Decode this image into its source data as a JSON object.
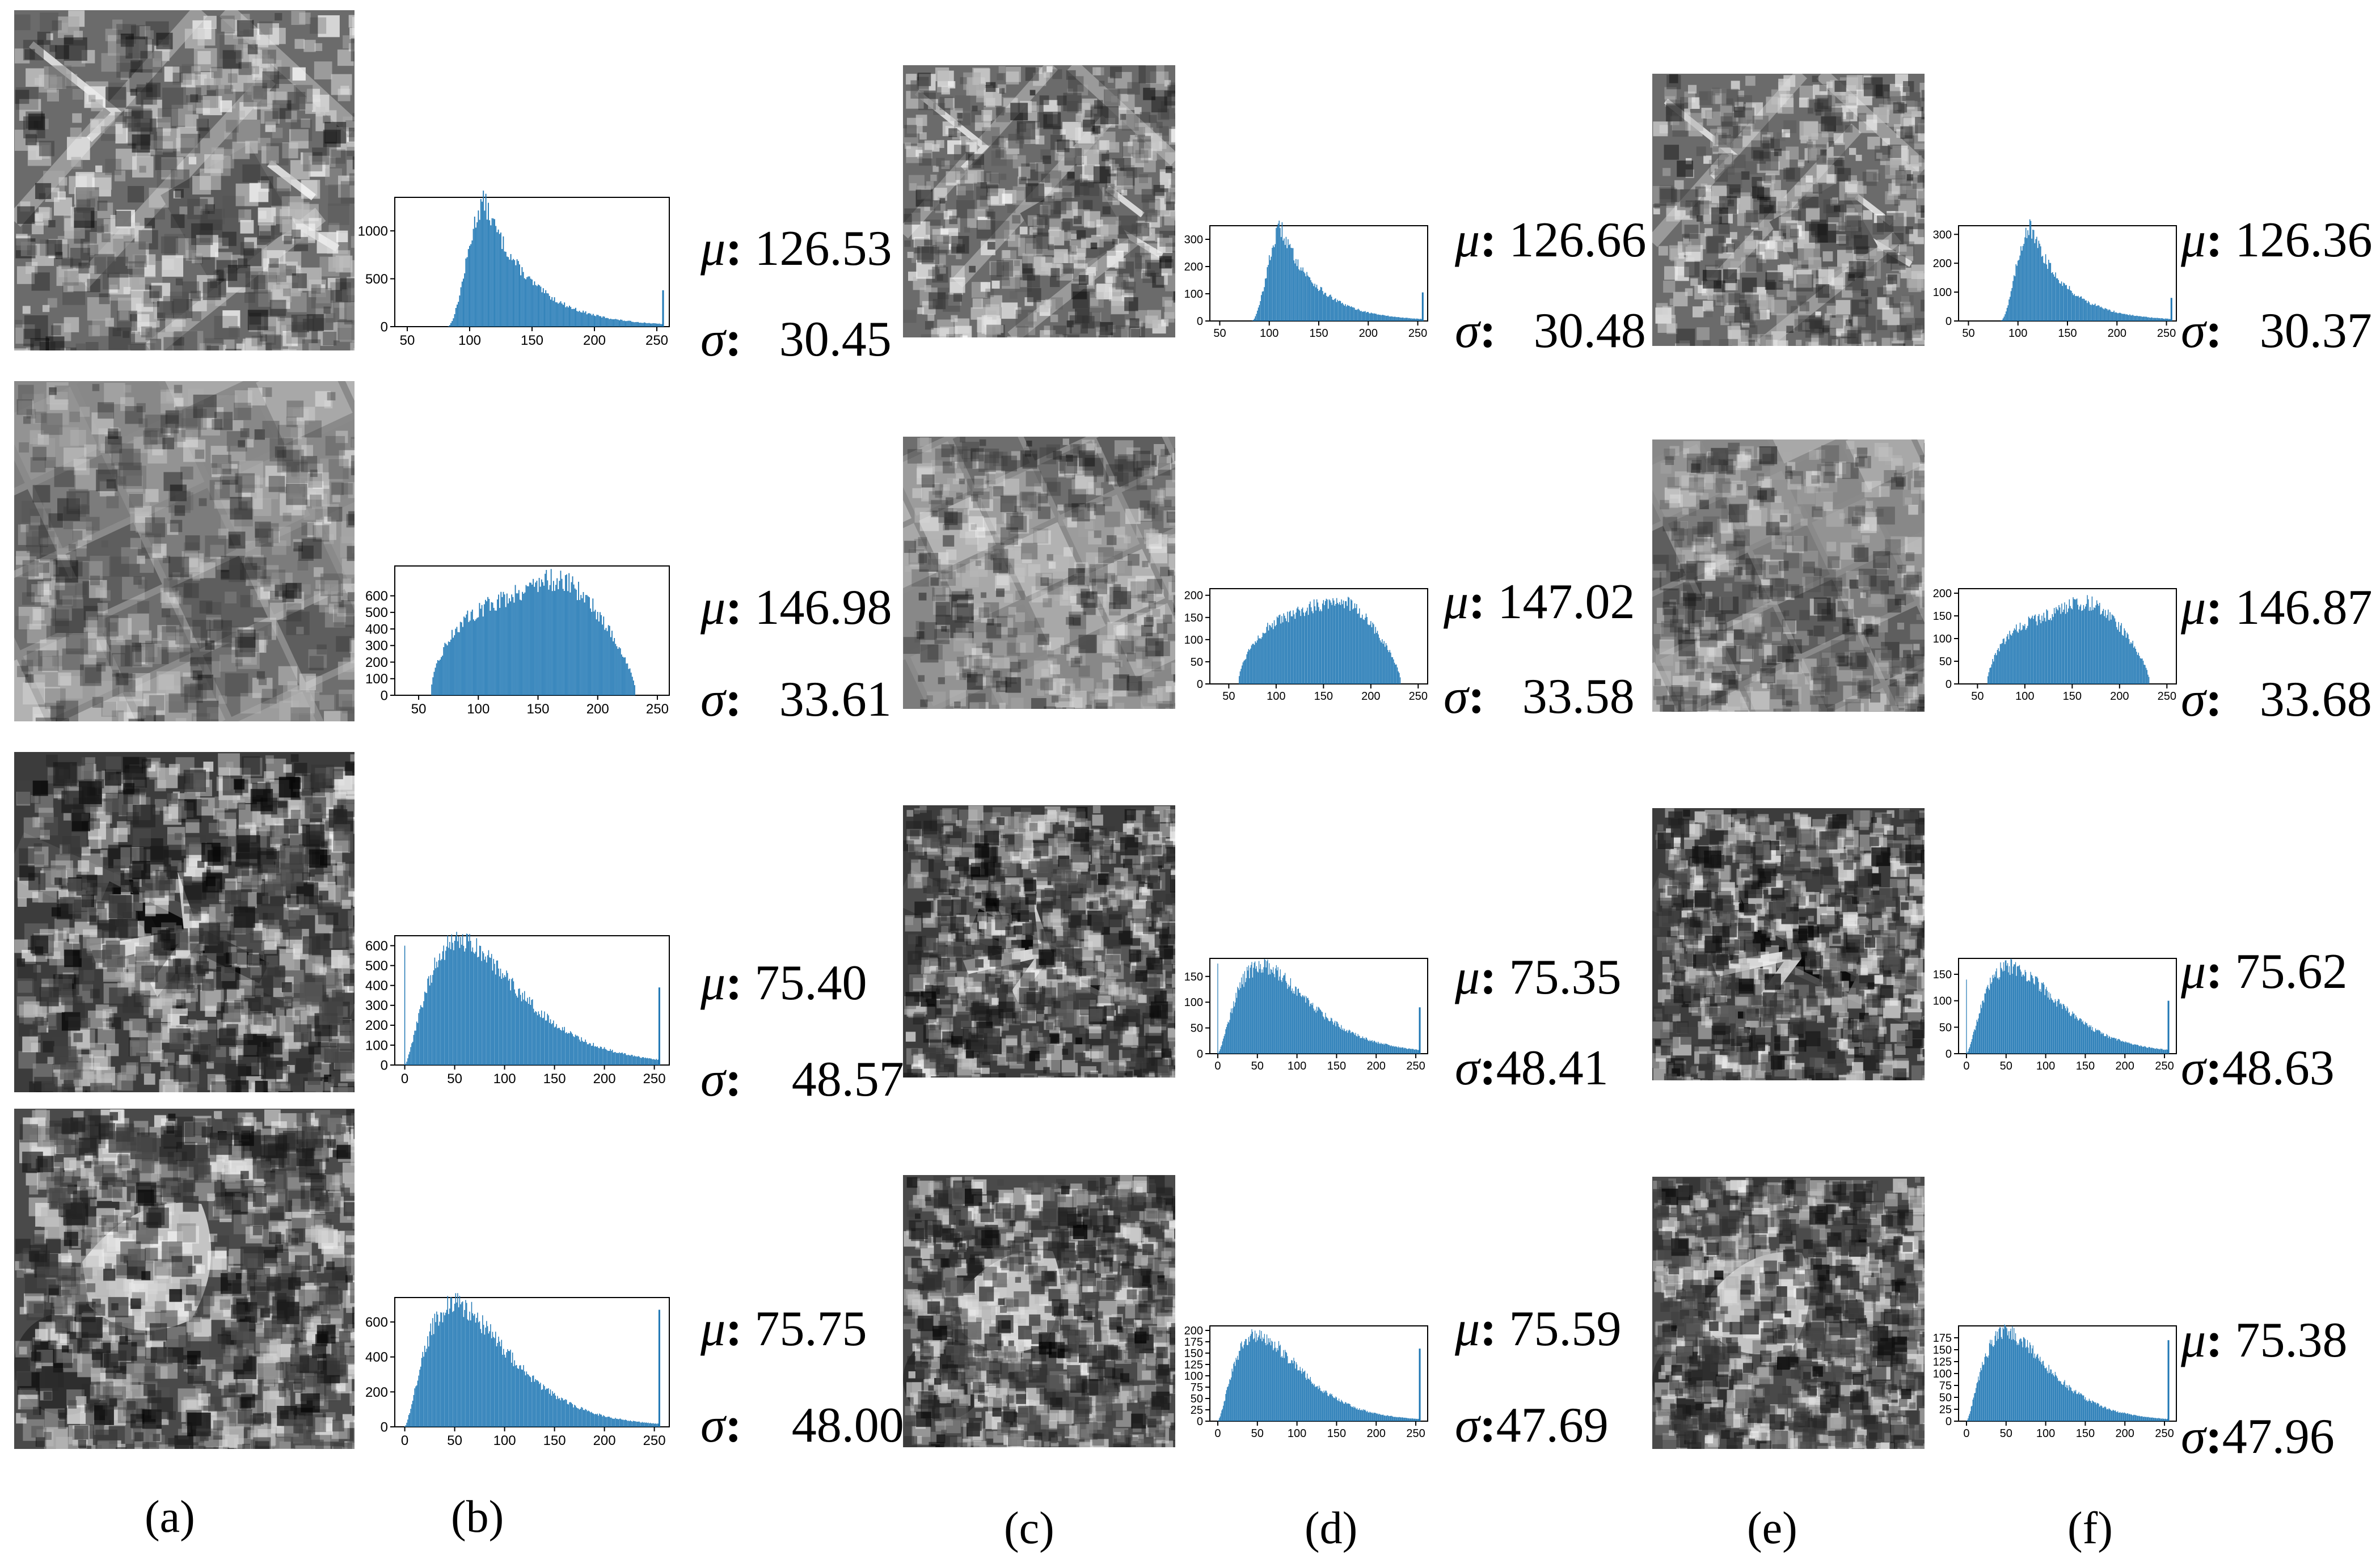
{
  "panel_labels": [
    "(a)",
    "(b)",
    "(c)",
    "(d)",
    "(e)",
    "(f)"
  ],
  "stat_symbols": {
    "mean": "μ",
    "std": "σ",
    "separator": ":"
  },
  "chart_data": [
    {
      "type": "bar",
      "row": 1,
      "group": "b",
      "xlim": [
        40,
        260
      ],
      "ylim": [
        0,
        1350
      ],
      "xticks": [
        "50",
        "100",
        "150",
        "200",
        "250"
      ],
      "yticks": [
        "0",
        "500",
        "1000"
      ],
      "shape": {
        "kind": "skew",
        "start": 82,
        "peak": 112,
        "peak_value": 1300,
        "tail": 0.027,
        "spike_x": 255,
        "spike_value": 380
      },
      "mean": "126.53",
      "std": "30.45",
      "color": "#1f77b4"
    },
    {
      "type": "bar",
      "row": 1,
      "group": "d",
      "xlim": [
        40,
        260
      ],
      "ylim": [
        0,
        350
      ],
      "xticks": [
        "50",
        "100",
        "150",
        "200",
        "250"
      ],
      "yticks": [
        "0",
        "100",
        "200",
        "300"
      ],
      "shape": {
        "kind": "skew",
        "start": 82,
        "peak": 112,
        "peak_value": 340,
        "tail": 0.027,
        "spike_x": 255,
        "spike_value": 105
      },
      "mean": "126.66",
      "std": "30.48",
      "color": "#1f77b4"
    },
    {
      "type": "bar",
      "row": 1,
      "group": "f",
      "xlim": [
        40,
        260
      ],
      "ylim": [
        0,
        330
      ],
      "xticks": [
        "50",
        "100",
        "150",
        "200",
        "250"
      ],
      "yticks": [
        "0",
        "100",
        "200",
        "300"
      ],
      "shape": {
        "kind": "skew",
        "start": 82,
        "peak": 112,
        "peak_value": 325,
        "tail": 0.027,
        "spike_x": 255,
        "spike_value": 80
      },
      "mean": "126.36",
      "std": "30.37",
      "color": "#1f77b4"
    },
    {
      "type": "bar",
      "row": 2,
      "group": "b",
      "xlim": [
        30,
        260
      ],
      "ylim": [
        0,
        780
      ],
      "xticks": [
        "50",
        "100",
        "150",
        "200",
        "250"
      ],
      "yticks": [
        "0",
        "100",
        "200",
        "300",
        "400",
        "500",
        "600"
      ],
      "shape": {
        "kind": "plateau",
        "start": 60,
        "end": 232,
        "peak_value": 740
      },
      "mean": "146.98",
      "std": "33.61",
      "color": "#1f77b4"
    },
    {
      "type": "bar",
      "row": 2,
      "group": "d",
      "xlim": [
        30,
        260
      ],
      "ylim": [
        0,
        215
      ],
      "xticks": [
        "50",
        "100",
        "150",
        "200",
        "250"
      ],
      "yticks": [
        "0",
        "50",
        "100",
        "150",
        "200"
      ],
      "shape": {
        "kind": "plateau",
        "start": 60,
        "end": 232,
        "peak_value": 200
      },
      "mean": "147.02",
      "std": "33.58",
      "color": "#1f77b4"
    },
    {
      "type": "bar",
      "row": 2,
      "group": "f",
      "xlim": [
        30,
        260
      ],
      "ylim": [
        0,
        210
      ],
      "xticks": [
        "50",
        "100",
        "150",
        "200",
        "250"
      ],
      "yticks": [
        "0",
        "50",
        "100",
        "150",
        "200"
      ],
      "shape": {
        "kind": "plateau",
        "start": 60,
        "end": 232,
        "peak_value": 190
      },
      "mean": "146.87",
      "std": "33.68",
      "color": "#1f77b4"
    },
    {
      "type": "bar",
      "row": 3,
      "group": "b",
      "xlim": [
        -10,
        265
      ],
      "ylim": [
        0,
        650
      ],
      "xticks": [
        "0",
        "50",
        "100",
        "150",
        "200",
        "250"
      ],
      "yticks": [
        "0",
        "100",
        "200",
        "300",
        "400",
        "500",
        "600"
      ],
      "shape": {
        "kind": "gamma",
        "peak": 55,
        "peak_value": 620,
        "k": 2.5,
        "start_spike": 600,
        "spike_x": 255,
        "spike_value": 390
      },
      "mean": "75.40",
      "std": "48.57",
      "color": "#1f77b4"
    },
    {
      "type": "bar",
      "row": 3,
      "group": "d",
      "xlim": [
        -10,
        265
      ],
      "ylim": [
        0,
        185
      ],
      "xticks": [
        "0",
        "50",
        "100",
        "150",
        "200",
        "250"
      ],
      "yticks": [
        "0",
        "50",
        "100",
        "150"
      ],
      "shape": {
        "kind": "gamma",
        "peak": 55,
        "peak_value": 170,
        "k": 2.5,
        "start_spike": 175,
        "spike_x": 255,
        "spike_value": 90
      },
      "mean": "75.35",
      "std": "48.41",
      "color": "#1f77b4"
    },
    {
      "type": "bar",
      "row": 3,
      "group": "f",
      "xlim": [
        -10,
        265
      ],
      "ylim": [
        0,
        180
      ],
      "xticks": [
        "0",
        "50",
        "100",
        "150",
        "200",
        "250"
      ],
      "yticks": [
        "0",
        "50",
        "100",
        "150"
      ],
      "shape": {
        "kind": "gamma",
        "peak": 55,
        "peak_value": 165,
        "k": 2.5,
        "start_spike": 140,
        "spike_x": 255,
        "spike_value": 100
      },
      "mean": "75.62",
      "std": "48.63",
      "color": "#1f77b4"
    },
    {
      "type": "bar",
      "row": 4,
      "group": "b",
      "xlim": [
        -10,
        265
      ],
      "ylim": [
        0,
        740
      ],
      "xticks": [
        "0",
        "50",
        "100",
        "150",
        "200",
        "250"
      ],
      "yticks": [
        "0",
        "200",
        "400",
        "600"
      ],
      "shape": {
        "kind": "gamma",
        "peak": 50,
        "peak_value": 700,
        "k": 2.5,
        "start_spike": 0,
        "spike_x": 255,
        "spike_value": 670
      },
      "mean": "75.75",
      "std": "48.00",
      "color": "#1f77b4"
    },
    {
      "type": "bar",
      "row": 4,
      "group": "d",
      "xlim": [
        -10,
        265
      ],
      "ylim": [
        0,
        210
      ],
      "xticks": [
        "0",
        "50",
        "100",
        "150",
        "200",
        "250"
      ],
      "yticks": [
        "0",
        "25",
        "50",
        "75",
        "100",
        "125",
        "150",
        "175",
        "200"
      ],
      "shape": {
        "kind": "gamma",
        "peak": 50,
        "peak_value": 190,
        "k": 2.5,
        "start_spike": 0,
        "spike_x": 255,
        "spike_value": 160
      },
      "mean": "75.59",
      "std": "47.69",
      "color": "#1f77b4"
    },
    {
      "type": "bar",
      "row": 4,
      "group": "f",
      "xlim": [
        -10,
        265
      ],
      "ylim": [
        0,
        200
      ],
      "xticks": [
        "0",
        "50",
        "100",
        "150",
        "200",
        "250"
      ],
      "yticks": [
        "0",
        "25",
        "50",
        "75",
        "100",
        "125",
        "150",
        "175"
      ],
      "shape": {
        "kind": "gamma",
        "peak": 50,
        "peak_value": 185,
        "k": 2.5,
        "start_spike": 0,
        "spike_x": 255,
        "spike_value": 170
      },
      "mean": "75.38",
      "std": "47.96",
      "color": "#1f77b4"
    }
  ]
}
